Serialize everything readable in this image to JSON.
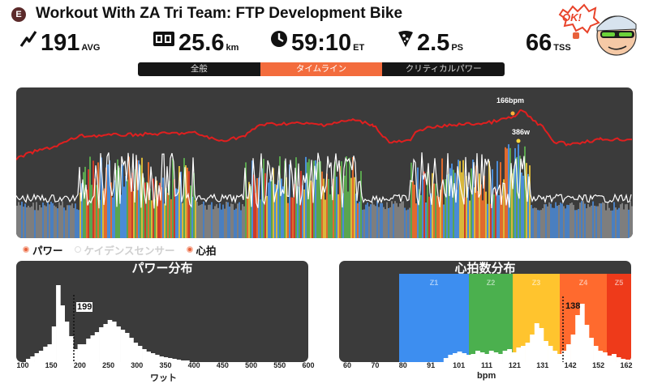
{
  "header": {
    "badge": "E",
    "title": "Workout With ZA Tri Team: FTP Development Bike",
    "ok_bubble": "OK!"
  },
  "stats": [
    {
      "icon": "lightning-icon",
      "value": "191",
      "unit": "AVG"
    },
    {
      "icon": "speedometer-icon",
      "value": "25.6",
      "unit": "km"
    },
    {
      "icon": "clock-icon",
      "value": "59:10",
      "unit": "ET"
    },
    {
      "icon": "pizza-icon",
      "value": "2.5",
      "unit": "PS"
    },
    {
      "icon": "tss-icon",
      "value": "66",
      "unit": "TSS"
    }
  ],
  "tabs": [
    {
      "label": "全般",
      "active": false
    },
    {
      "label": "タイムライン",
      "active": true
    },
    {
      "label": "クリティカルパワー",
      "active": false
    }
  ],
  "timeline": {
    "hr_peak_label": "166bpm",
    "power_peak_label": "386w"
  },
  "legend": [
    {
      "label": "パワー",
      "color": "#e8613b"
    },
    {
      "label": "ケイデンスセンサー",
      "color": "#dddddd"
    },
    {
      "label": "心拍",
      "color": "#e8613b"
    }
  ],
  "power_panel": {
    "title": "パワー分布",
    "avg_marker": "199",
    "x_ticks": [
      "100",
      "150",
      "200",
      "250",
      "300",
      "350",
      "400",
      "450",
      "500",
      "550",
      "600"
    ],
    "x_label": "ワット"
  },
  "hr_panel": {
    "title": "心拍数分布",
    "avg_marker": "138",
    "zones": [
      "Z1",
      "Z2",
      "Z3",
      "Z4",
      "Z5"
    ],
    "zone_colors": [
      "#3d8ef0",
      "#4bb04e",
      "#ffc42e",
      "#ff6a2e",
      "#ee3a1a"
    ],
    "x_ticks": [
      "60",
      "70",
      "80",
      "91",
      "101",
      "111",
      "121",
      "131",
      "142",
      "152",
      "162"
    ],
    "x_label": "bpm"
  },
  "colors": {
    "accent": "#f36c3d",
    "panel_bg": "#3b3b3b",
    "hr_line": "#e01f1f"
  }
}
